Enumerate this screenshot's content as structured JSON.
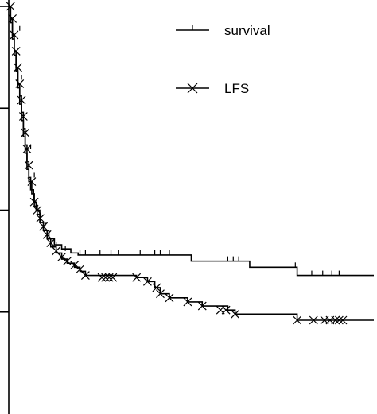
{
  "chart_data": {
    "type": "line",
    "title": "",
    "xlabel": "",
    "ylabel": "",
    "xlim": [
      0,
      100
    ],
    "ylim": [
      0,
      1
    ],
    "grid": false,
    "legend_position": "top-right",
    "series": [
      {
        "name": "survival",
        "marker": "tick",
        "steps": [
          [
            0,
            1.0
          ],
          [
            0.5,
            0.97
          ],
          [
            1,
            0.93
          ],
          [
            1.5,
            0.89
          ],
          [
            2,
            0.85
          ],
          [
            2.5,
            0.81
          ],
          [
            3,
            0.78
          ],
          [
            3.5,
            0.74
          ],
          [
            4,
            0.7
          ],
          [
            4.5,
            0.66
          ],
          [
            5,
            0.62
          ],
          [
            5.5,
            0.58
          ],
          [
            6,
            0.55
          ],
          [
            6.8,
            0.52
          ],
          [
            7.5,
            0.5
          ],
          [
            8.5,
            0.47
          ],
          [
            9.5,
            0.45
          ],
          [
            11,
            0.43
          ],
          [
            12.5,
            0.415
          ],
          [
            14.5,
            0.405
          ],
          [
            17,
            0.395
          ],
          [
            19,
            0.39
          ],
          [
            50,
            0.375
          ],
          [
            66,
            0.36
          ],
          [
            79,
            0.34
          ]
        ],
        "end_x": 100,
        "censored": [
          [
            3,
            0.94
          ],
          [
            3.5,
            0.82
          ],
          [
            6,
            0.65
          ],
          [
            7,
            0.58
          ],
          [
            10,
            0.46
          ],
          [
            13,
            0.41
          ],
          [
            15.5,
            0.4
          ],
          [
            19.5,
            0.39
          ],
          [
            21,
            0.39
          ],
          [
            25,
            0.39
          ],
          [
            28,
            0.39
          ],
          [
            30,
            0.39
          ],
          [
            36,
            0.39
          ],
          [
            40,
            0.39
          ],
          [
            41.5,
            0.39
          ],
          [
            44,
            0.39
          ],
          [
            60,
            0.375
          ],
          [
            61.5,
            0.375
          ],
          [
            63,
            0.375
          ],
          [
            78.5,
            0.36
          ],
          [
            83,
            0.34
          ],
          [
            86,
            0.34
          ],
          [
            88.5,
            0.34
          ],
          [
            90.5,
            0.34
          ]
        ]
      },
      {
        "name": "LFS",
        "marker": "x",
        "steps": [
          [
            0,
            1.0
          ],
          [
            0.5,
            0.96
          ],
          [
            1,
            0.92
          ],
          [
            1.5,
            0.88
          ],
          [
            2,
            0.84
          ],
          [
            2.5,
            0.8
          ],
          [
            3,
            0.76
          ],
          [
            3.5,
            0.72
          ],
          [
            4,
            0.68
          ],
          [
            4.5,
            0.64
          ],
          [
            5,
            0.6
          ],
          [
            5.5,
            0.57
          ],
          [
            6.3,
            0.54
          ],
          [
            7,
            0.51
          ],
          [
            7.8,
            0.49
          ],
          [
            8.6,
            0.47
          ],
          [
            9.5,
            0.45
          ],
          [
            10.5,
            0.43
          ],
          [
            11.5,
            0.41
          ],
          [
            13,
            0.395
          ],
          [
            14.5,
            0.38
          ],
          [
            16,
            0.37
          ],
          [
            18,
            0.36
          ],
          [
            19.5,
            0.35
          ],
          [
            21,
            0.34
          ],
          [
            35,
            0.335
          ],
          [
            38,
            0.325
          ],
          [
            40,
            0.31
          ],
          [
            41.5,
            0.295
          ],
          [
            44,
            0.285
          ],
          [
            49,
            0.275
          ],
          [
            53,
            0.265
          ],
          [
            60,
            0.255
          ],
          [
            62,
            0.245
          ],
          [
            79,
            0.23
          ]
        ],
        "end_x": 100,
        "censored": [
          [
            0.5,
            1.0
          ],
          [
            1,
            0.97
          ],
          [
            1.5,
            0.93
          ],
          [
            2,
            0.89
          ],
          [
            2.5,
            0.85
          ],
          [
            3,
            0.81
          ],
          [
            3.5,
            0.77
          ],
          [
            4,
            0.73
          ],
          [
            4.5,
            0.69
          ],
          [
            5,
            0.65
          ],
          [
            5.5,
            0.61
          ],
          [
            6.3,
            0.57
          ],
          [
            7,
            0.52
          ],
          [
            7.8,
            0.5
          ],
          [
            8.6,
            0.48
          ],
          [
            9.5,
            0.46
          ],
          [
            10.5,
            0.44
          ],
          [
            11.5,
            0.42
          ],
          [
            13,
            0.4
          ],
          [
            14.5,
            0.385
          ],
          [
            16,
            0.375
          ],
          [
            18,
            0.365
          ],
          [
            19.5,
            0.355
          ],
          [
            21,
            0.34
          ],
          [
            25.5,
            0.335
          ],
          [
            26.5,
            0.335
          ],
          [
            27.5,
            0.335
          ],
          [
            28.5,
            0.335
          ],
          [
            35,
            0.335
          ],
          [
            38,
            0.325
          ],
          [
            40.5,
            0.31
          ],
          [
            41.5,
            0.295
          ],
          [
            44,
            0.285
          ],
          [
            49,
            0.275
          ],
          [
            53,
            0.265
          ],
          [
            58,
            0.255
          ],
          [
            59.5,
            0.255
          ],
          [
            62,
            0.245
          ],
          [
            79,
            0.23
          ],
          [
            83.5,
            0.23
          ],
          [
            86.5,
            0.23
          ],
          [
            88,
            0.23
          ],
          [
            89.5,
            0.23
          ],
          [
            90.5,
            0.23
          ],
          [
            91.5,
            0.23
          ]
        ]
      }
    ]
  },
  "legend": {
    "survival_label": "survival",
    "lfs_label": "LFS"
  }
}
